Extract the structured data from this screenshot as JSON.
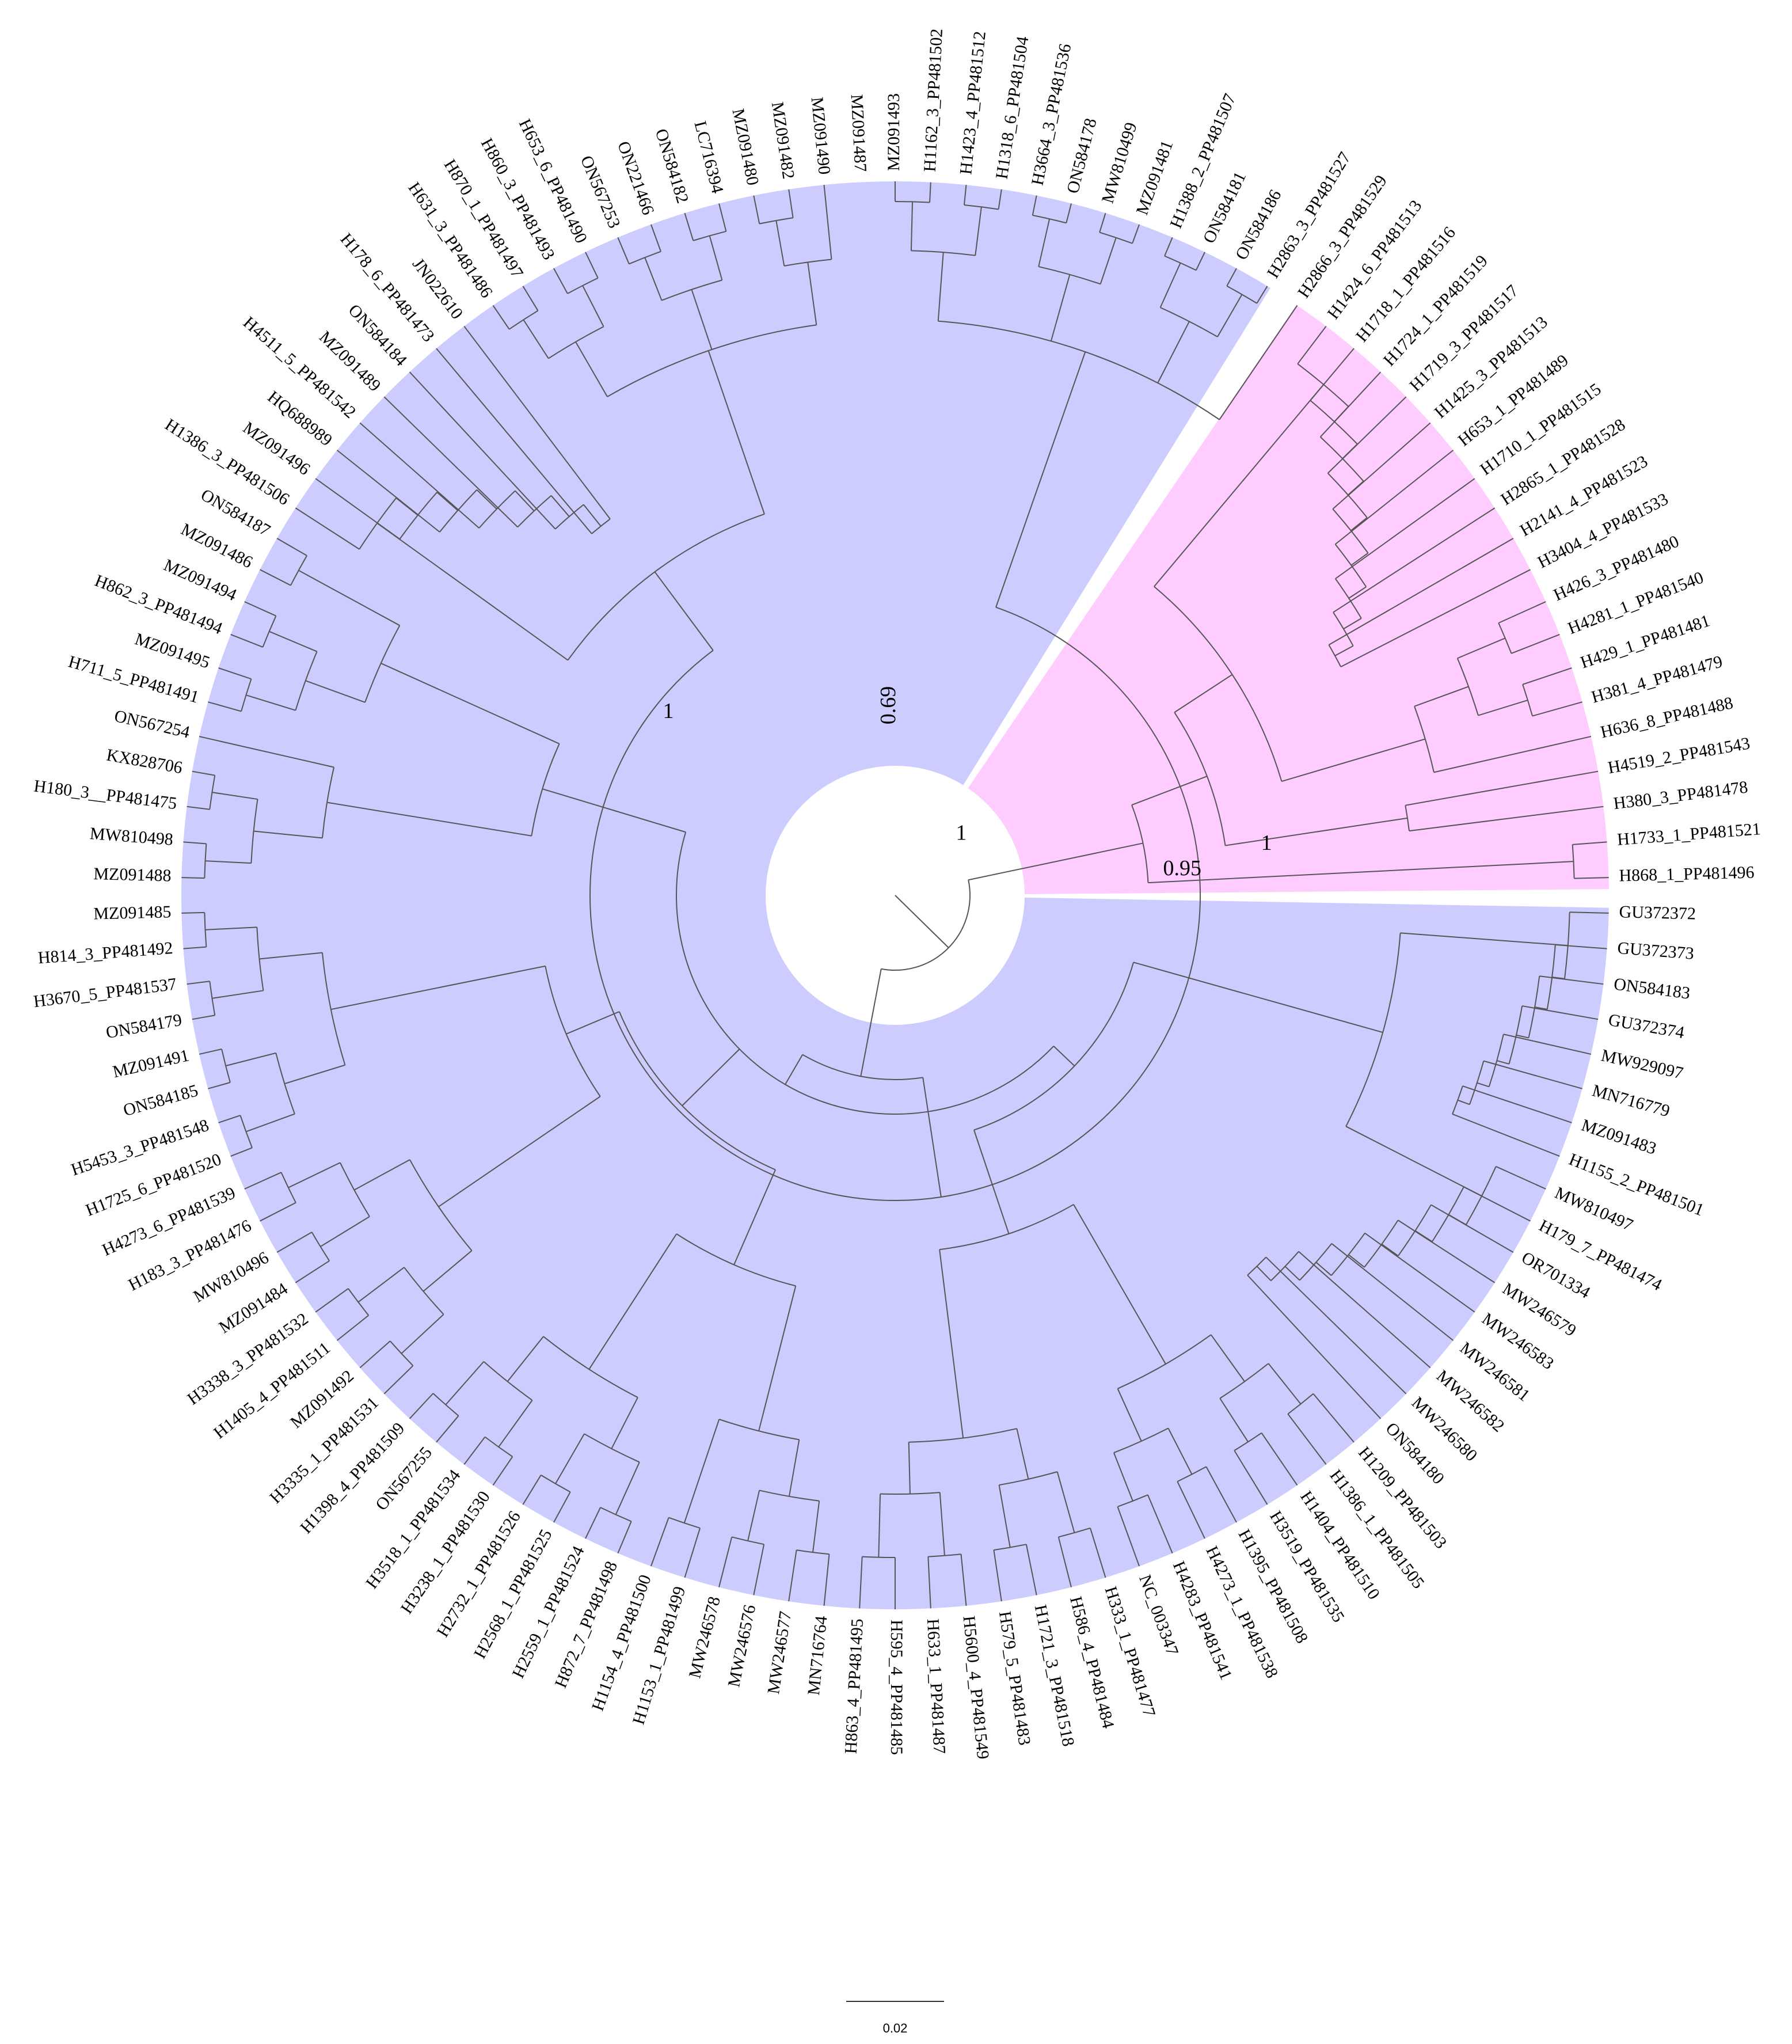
{
  "figure": {
    "title": "",
    "type": "circular phylogenetic tree",
    "colors": {
      "main_clade": "#ccccff",
      "highlight_clade": "#ffccff",
      "branch": "#555555",
      "text": "#000000",
      "background": "#ffffff"
    }
  },
  "support_values": [
    {
      "id": "main-clade",
      "value": "1"
    },
    {
      "id": "inner-node",
      "value": "0.69"
    },
    {
      "id": "root-node",
      "value": "1"
    },
    {
      "id": "pink-clade",
      "value": "1"
    },
    {
      "id": "pink-outer",
      "value": "0.95"
    }
  ],
  "scale_bar": {
    "label": "0.02"
  },
  "leaves": [
    "MZ091493",
    "H1162_3_PP481502",
    "H1423_4_PP481512",
    "H1318_6_PP481504",
    "H3664_3_PP481536",
    "ON584178",
    "MW810499",
    "MZ091481",
    "H1388_2_PP481507",
    "ON584181",
    "ON584186",
    "H2863_3_PP481527",
    "H2866_3_PP481529",
    "H1424_6_PP481513",
    "H1718_1_PP481516",
    "H1724_1_PP481519",
    "H1719_3_PP481517",
    "H1425_3_PP481513",
    "H653_1_PP481489",
    "H1710_1_PP481515",
    "H2865_1_PP481528",
    "H2141_4_PP481523",
    "H3404_4_PP481533",
    "H426_3_PP481480",
    "H4281_1_PP481540",
    "H429_1_PP481481",
    "H381_4_PP481479",
    "H636_8_PP481488",
    "H4519_2_PP481543",
    "H380_3_PP481478",
    "H1733_1_PP481521",
    "H868_1_PP481496",
    "GU372372",
    "GU372373",
    "ON584183",
    "GU372374",
    "MW929097",
    "MN716779",
    "MZ091483",
    "H1155_2_PP481501",
    "MW810497",
    "H179_7_PP481474",
    "OR701334",
    "MW246579",
    "MW246583",
    "MW246581",
    "MW246582",
    "MW246580",
    "ON584180",
    "H1209_PP481503",
    "H1386_1_PP481505",
    "H1404_PP481510",
    "H3519_PP481535",
    "H1395_PP481508",
    "H4273_1_PP481538",
    "H4283_PP481541",
    "NC_003347",
    "H333_1_PP481477",
    "H586_4_PP481484",
    "H1721_3_PP481518",
    "H579_5_PP481483",
    "H5600_4_PP481549",
    "H633_1_PP481487",
    "H595_4_PP481485",
    "H863_4_PP481495",
    "MN716764",
    "MW246577",
    "MW246576",
    "MW246578",
    "H1153_1_PP481499",
    "H1154_4_PP481500",
    "H872_7_PP481498",
    "H2559_1_PP481524",
    "H2568_1_PP481525",
    "H2732_1_PP481526",
    "H3238_1_PP481530",
    "H3518_1_PP481534",
    "ON567255",
    "H1398_4_PP481509",
    "H3335_1_PP481531",
    "MZ091492",
    "H1405_4_PP481511",
    "H3338_3_PP481532",
    "MZ091484",
    "MW810496",
    "H183_3_PP481476",
    "H4273_6_PP481539",
    "H1725_6_PP481520",
    "H5453_3_PP481548",
    "ON584185",
    "MZ091491",
    "ON584179",
    "H3670_5_PP481537",
    "H814_3_PP481492",
    "MZ091485",
    "MZ091488",
    "MW810498",
    "H180_3__PP481475",
    "KX828706",
    "ON567254",
    "H711_5_PP481491",
    "MZ091495",
    "H862_3_PP481494",
    "MZ091494",
    "MZ091486",
    "ON584187",
    "H1386_3_PP481506",
    "MZ091496",
    "HQ688989",
    "H4511_5_PP481542",
    "MZ091489",
    "ON584184",
    "H178_6_PP481473",
    "JN022610",
    "H631_3_PP481486",
    "H870_1_PP481497",
    "H860_3_PP481493",
    "H653_6_PP481490",
    "ON567253",
    "ON221466",
    "ON584182",
    "LC716394",
    "MZ091480",
    "MZ091482",
    "MZ091490",
    "MZ091487"
  ]
}
